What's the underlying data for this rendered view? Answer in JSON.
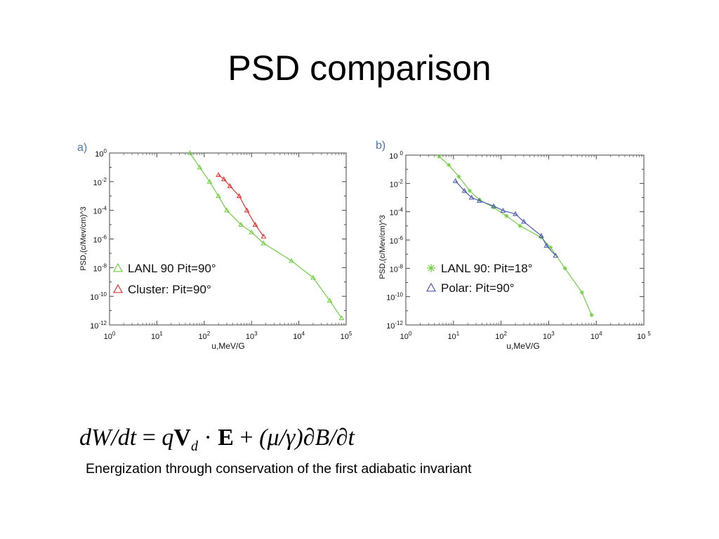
{
  "slide": {
    "title": "PSD comparison",
    "caption": "Energization through conservation of the first adiabatic invariant"
  },
  "equation": {
    "lhs": "dW/dt",
    "eq": "=",
    "q": "q",
    "v": "V",
    "v_sub": "d",
    "dot": "·",
    "e": "E",
    "plus": "+",
    "mu_gamma": "(μ/γ)",
    "dbdt": "∂B/∂t"
  },
  "colors": {
    "green": "#6fcf3f",
    "red": "#e8322f",
    "blue": "#4a5bb0",
    "panel_label": "#4a78b0"
  },
  "chart_data": [
    {
      "type": "line",
      "panel_label": "a)",
      "xlabel": "u,MeV/G",
      "ylabel": "PSD,(c/Mev/cm)^3",
      "xscale": "log",
      "yscale": "log",
      "xlim": [
        1,
        100000
      ],
      "ylim": [
        1e-12,
        1
      ],
      "x_ticks": [
        {
          "base": "10",
          "exp": "0"
        },
        {
          "base": "10",
          "exp": "1"
        },
        {
          "base": "10",
          "exp": "2"
        },
        {
          "base": "10",
          "exp": "3"
        },
        {
          "base": "10",
          "exp": "4"
        },
        {
          "base": "10",
          "exp": "5"
        }
      ],
      "y_ticks": [
        {
          "base": "10",
          "exp": "0"
        },
        {
          "base": "10",
          "exp": "-2"
        },
        {
          "base": "10",
          "exp": "-4"
        },
        {
          "base": "10",
          "exp": "-6"
        },
        {
          "base": "10",
          "exp": "-8"
        },
        {
          "base": "10",
          "exp": "-10"
        },
        {
          "base": "10",
          "exp": "-12"
        }
      ],
      "legend_position": "bottom-left",
      "series": [
        {
          "name": "LANL 90 Pit=90°",
          "color": "#6fcf3f",
          "marker": "triangle",
          "points": [
            [
              50,
              1
            ],
            [
              80,
              0.1
            ],
            [
              130,
              0.01
            ],
            [
              200,
              0.001
            ],
            [
              300,
              0.0001
            ],
            [
              600,
              1e-05
            ],
            [
              1000,
              3e-06
            ],
            [
              1800,
              5e-07
            ],
            [
              7000,
              3e-08
            ],
            [
              20000,
              2e-09
            ],
            [
              45000,
              5e-11
            ],
            [
              80000,
              3e-12
            ]
          ]
        },
        {
          "name": "Cluster: Pit=90°",
          "color": "#e8322f",
          "marker": "triangle",
          "points": [
            [
              200,
              0.03
            ],
            [
              260,
              0.015
            ],
            [
              350,
              0.005
            ],
            [
              550,
              0.001
            ],
            [
              800,
              0.0001
            ],
            [
              1200,
              1e-05
            ],
            [
              1800,
              1.5e-06
            ]
          ]
        }
      ]
    },
    {
      "type": "line",
      "panel_label": "b)",
      "xlabel": "u,MeV/G",
      "ylabel": "PSD,(c/Mev/cm)^3",
      "xscale": "log",
      "yscale": "log",
      "xlim": [
        1,
        100000
      ],
      "ylim": [
        1e-12,
        1
      ],
      "x_ticks": [
        {
          "base": "10",
          "exp": "0"
        },
        {
          "base": "10",
          "exp": "1"
        },
        {
          "base": "10",
          "exp": "2"
        },
        {
          "base": "10",
          "exp": "3"
        },
        {
          "base": "10",
          "exp": "4"
        },
        {
          "base": "10 ",
          "exp": "5"
        }
      ],
      "y_ticks": [
        {
          "base": "10 ",
          "exp": "0"
        },
        {
          "base": "10",
          "exp": "-2"
        },
        {
          "base": "10",
          "exp": "-4"
        },
        {
          "base": "10",
          "exp": "-6"
        },
        {
          "base": "10",
          "exp": "-8"
        },
        {
          "base": "10",
          "exp": "-10"
        },
        {
          "base": "10",
          "exp": "-12"
        }
      ],
      "legend_position": "bottom-left",
      "series": [
        {
          "name": "LANL 90: Pit=18°",
          "color": "#6fcf3f",
          "marker": "star",
          "points": [
            [
              5,
              0.8
            ],
            [
              8,
              0.2
            ],
            [
              13,
              0.03
            ],
            [
              22,
              0.003
            ],
            [
              35,
              0.0007
            ],
            [
              70,
              0.0002
            ],
            [
              130,
              5e-05
            ],
            [
              250,
              1e-05
            ],
            [
              700,
              1.5e-06
            ],
            [
              1100,
              3e-07
            ],
            [
              2200,
              1e-08
            ],
            [
              5000,
              2e-10
            ],
            [
              8000,
              5e-12
            ]
          ]
        },
        {
          "name": "Polar: Pit=90°",
          "color": "#4a5bb0",
          "marker": "triangle",
          "points": [
            [
              11,
              0.015
            ],
            [
              17,
              0.003
            ],
            [
              24,
              0.001
            ],
            [
              35,
              0.0006
            ],
            [
              70,
              0.00025
            ],
            [
              110,
              0.00012
            ],
            [
              200,
              7e-05
            ],
            [
              300,
              2e-05
            ],
            [
              700,
              2e-06
            ],
            [
              900,
              4e-07
            ],
            [
              1400,
              8e-08
            ]
          ]
        }
      ]
    }
  ]
}
